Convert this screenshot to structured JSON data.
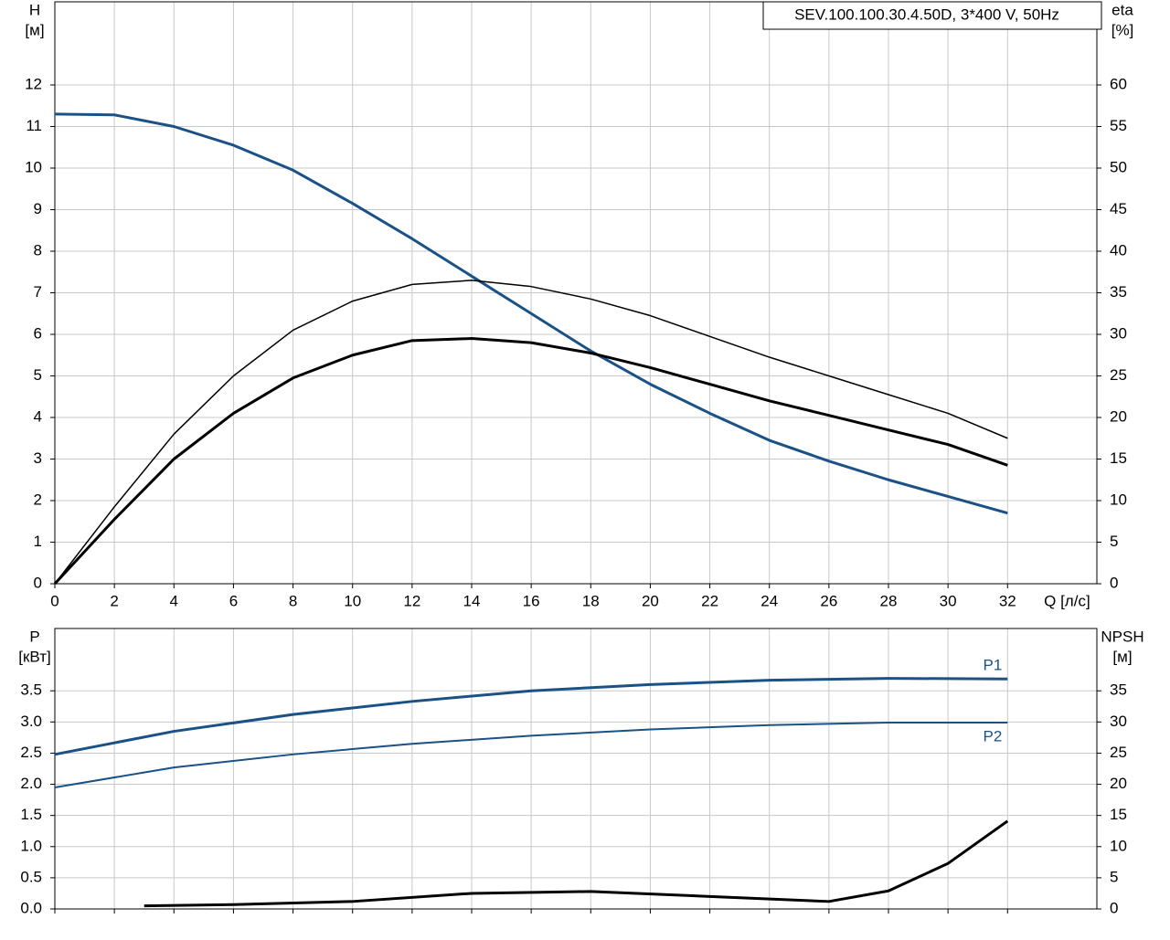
{
  "chart_data": [
    {
      "type": "line",
      "title": "SEV.100.100.30.4.50D, 3*400 V, 50Hz",
      "x_label": "Q [л/с]",
      "y_label": "H",
      "y_unit": "[м]",
      "y2_label": "eta",
      "y2_unit": "[%]",
      "xlim": [
        0,
        35
      ],
      "xticks": [
        0,
        2,
        4,
        6,
        8,
        10,
        12,
        14,
        16,
        18,
        20,
        22,
        24,
        26,
        28,
        30,
        32
      ],
      "ylim": [
        0,
        14
      ],
      "yticks": [
        0,
        1,
        2,
        3,
        4,
        5,
        6,
        7,
        8,
        9,
        10,
        11,
        12
      ],
      "y2lim": [
        0,
        70
      ],
      "y2ticks": [
        0,
        5,
        10,
        15,
        20,
        25,
        30,
        35,
        40,
        45,
        50,
        55,
        60
      ],
      "grid": true,
      "x": [
        0,
        2,
        4,
        6,
        8,
        10,
        12,
        14,
        16,
        18,
        20,
        22,
        24,
        26,
        28,
        30,
        32
      ],
      "series": [
        {
          "color": "#1a5186",
          "linewidth": 3,
          "values": [
            11.3,
            11.28,
            11.0,
            10.55,
            9.95,
            9.15,
            8.3,
            7.4,
            6.5,
            5.6,
            4.8,
            4.1,
            3.45,
            2.95,
            2.5,
            2.1,
            1.7
          ]
        },
        {
          "color": "#000000",
          "linewidth": 3,
          "axis": "y2",
          "values": [
            0,
            7.75,
            15,
            20.5,
            24.75,
            27.5,
            29.25,
            29.5,
            29,
            27.75,
            26,
            24,
            22,
            20.25,
            18.5,
            16.75,
            14.25
          ]
        },
        {
          "color": "#000000",
          "linewidth": 1.5,
          "axis": "y2",
          "values": [
            0,
            9.25,
            18,
            25,
            30.5,
            34,
            36,
            36.5,
            35.75,
            34.25,
            32.25,
            29.75,
            27.25,
            25,
            22.75,
            20.5,
            17.5
          ]
        }
      ]
    },
    {
      "type": "line",
      "y_label": "P",
      "y_unit": "[кВт]",
      "y2_label": "NPSH",
      "y2_unit": "[м]",
      "xlim": [
        0,
        35
      ],
      "ylim": [
        0,
        4.5
      ],
      "yticks": [
        {
          "value": 0,
          "label": "0.0"
        },
        0.5,
        {
          "value": 1,
          "label": "1.0"
        },
        1.5,
        {
          "value": 2,
          "label": "2.0"
        },
        2.5,
        {
          "value": 3,
          "label": "3.0"
        },
        3.5
      ],
      "y2lim": [
        0,
        45
      ],
      "y2ticks": [
        0,
        5,
        10,
        15,
        20,
        25,
        30,
        35
      ],
      "grid": true,
      "x": [
        0,
        4,
        8,
        12,
        16,
        20,
        24,
        28,
        32
      ],
      "series": [
        {
          "name": "P1",
          "color": "#1a5186",
          "linewidth": 3,
          "values": [
            2.48,
            2.85,
            3.12,
            3.33,
            3.5,
            3.6,
            3.67,
            3.7,
            3.69
          ]
        },
        {
          "name": "P2",
          "color": "#1a5186",
          "linewidth": 2,
          "values": [
            1.95,
            2.27,
            2.48,
            2.65,
            2.78,
            2.88,
            2.95,
            2.99,
            2.99
          ]
        },
        {
          "color": "#000000",
          "linewidth": 3,
          "axis": "y2",
          "x": [
            3,
            6,
            10,
            14,
            18,
            22,
            26,
            28,
            30,
            32
          ],
          "values": [
            0.5,
            0.7,
            1.2,
            2.5,
            2.8,
            2.0,
            1.2,
            2.9,
            7.3,
            14.1
          ]
        }
      ]
    }
  ]
}
